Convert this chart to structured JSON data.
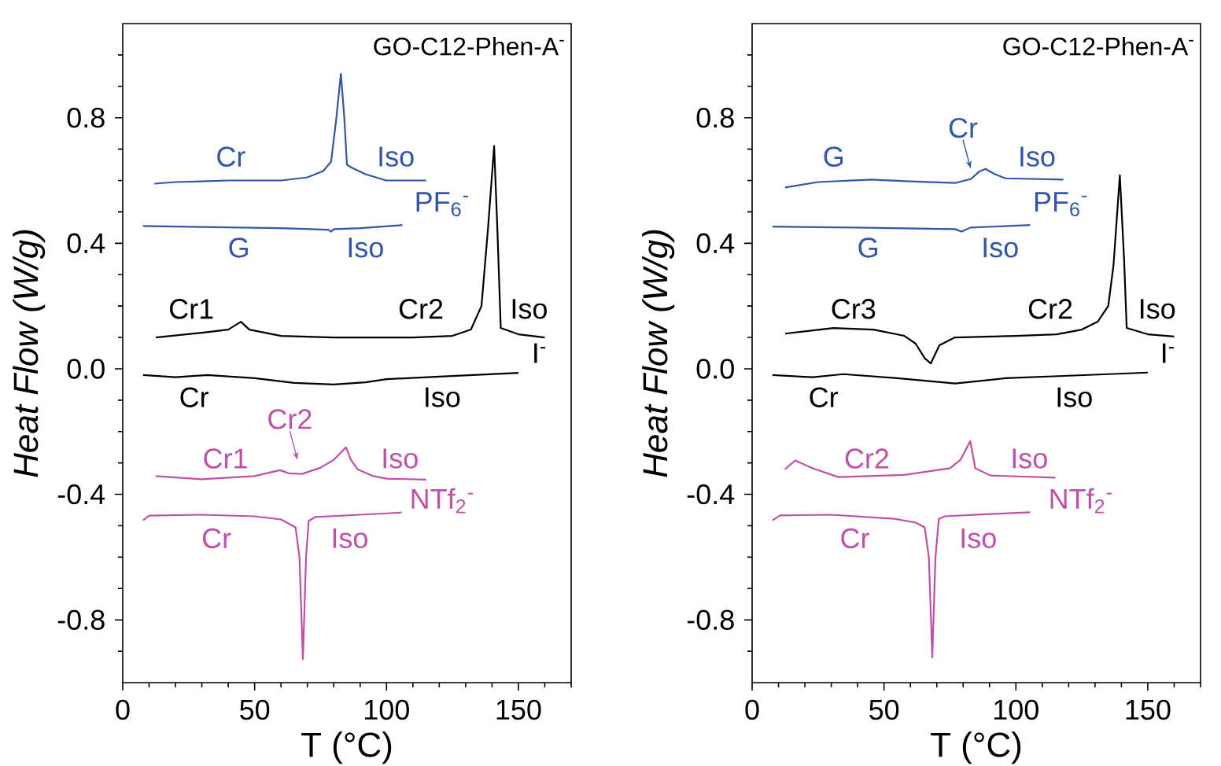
{
  "chart_data": [
    {
      "type": "line",
      "title": "GO-C12-Phen-A$^{-}$",
      "xlabel": "T (°C)",
      "ylabel": "Heat Flow (W/g)",
      "xlim": [
        0,
        170
      ],
      "ylim": [
        -1.0,
        1.1
      ],
      "xticks": [
        0,
        {
          "value": 10,
          "label": null
        },
        {
          "value": 20,
          "label": null
        },
        {
          "value": 30,
          "label": null
        },
        {
          "value": 40,
          "label": null
        },
        50,
        {
          "value": 60,
          "label": null
        },
        {
          "value": 70,
          "label": null
        },
        {
          "value": 80,
          "label": null
        },
        {
          "value": 90,
          "label": null
        },
        100,
        {
          "value": 110,
          "label": null
        },
        {
          "value": 120,
          "label": null
        },
        {
          "value": 130,
          "label": null
        },
        {
          "value": 140,
          "label": null
        },
        150,
        {
          "value": 160,
          "label": null
        },
        {
          "value": 170,
          "label": null
        }
      ],
      "yticks": [
        {
          "value": -0.9,
          "label": null
        },
        -0.8,
        {
          "value": -0.7,
          "label": null
        },
        {
          "value": -0.6,
          "label": null
        },
        {
          "value": -0.5,
          "label": null
        },
        -0.4,
        {
          "value": -0.3,
          "label": null
        },
        {
          "value": -0.2,
          "label": null
        },
        {
          "value": -0.1,
          "label": null
        },
        {
          "value": 0,
          "label": "0.0"
        },
        {
          "value": 0.1,
          "label": null
        },
        {
          "value": 0.2,
          "label": null
        },
        {
          "value": 0.3,
          "label": null
        },
        0.4,
        {
          "value": 0.5,
          "label": null
        },
        {
          "value": 0.6,
          "label": null
        },
        {
          "value": 0.7,
          "label": null
        },
        0.8,
        {
          "value": 0.9,
          "label": null
        },
        {
          "value": 1.0,
          "label": null
        }
      ],
      "series": [
        {
          "color": "#3355aa",
          "x": [
            12,
            20,
            40,
            60,
            70,
            76,
            79,
            81,
            82.7,
            84,
            85,
            87,
            92,
            100,
            115
          ],
          "values": [
            0.59,
            0.595,
            0.6,
            0.6,
            0.61,
            0.63,
            0.66,
            0.8,
            0.94,
            0.8,
            0.65,
            0.64,
            0.62,
            0.6,
            0.6
          ]
        },
        {
          "color": "#3355aa",
          "x": [
            7.7,
            30,
            60,
            78,
            79,
            80,
            90,
            106
          ],
          "values": [
            0.455,
            0.452,
            0.448,
            0.443,
            0.437,
            0.445,
            0.448,
            0.458
          ]
        },
        {
          "color": "#000000",
          "x": [
            12.5,
            30,
            40,
            44.8,
            48,
            60,
            80,
            110,
            125,
            132,
            136,
            138.5,
            140.8,
            142,
            143.3,
            150,
            160
          ],
          "values": [
            0.1,
            0.115,
            0.125,
            0.15,
            0.125,
            0.105,
            0.1,
            0.1,
            0.105,
            0.125,
            0.2,
            0.45,
            0.71,
            0.45,
            0.13,
            0.11,
            0.1
          ]
        },
        {
          "color": "#000000",
          "x": [
            7.7,
            20,
            32,
            50,
            65,
            80,
            92,
            100,
            120,
            150
          ],
          "values": [
            -0.02,
            -0.027,
            -0.02,
            -0.03,
            -0.045,
            -0.05,
            -0.043,
            -0.033,
            -0.025,
            -0.013
          ]
        },
        {
          "color": "#c050a8",
          "x": [
            12.5,
            30,
            50,
            56,
            59.6,
            63,
            68,
            75,
            80,
            84.6,
            86.5,
            89,
            95,
            100,
            115
          ],
          "values": [
            -0.342,
            -0.352,
            -0.342,
            -0.33,
            -0.323,
            -0.333,
            -0.335,
            -0.315,
            -0.29,
            -0.25,
            -0.29,
            -0.32,
            -0.342,
            -0.35,
            -0.353
          ]
        },
        {
          "color": "#c050a8",
          "x": [
            7.7,
            10,
            30,
            50,
            60,
            65.5,
            67,
            68.3,
            69.5,
            70.5,
            73,
            90,
            105.7
          ],
          "values": [
            -0.483,
            -0.468,
            -0.465,
            -0.47,
            -0.48,
            -0.505,
            -0.6,
            -0.925,
            -0.6,
            -0.485,
            -0.472,
            -0.465,
            -0.458
          ]
        }
      ],
      "annotations": [
        "Cr",
        "Iso",
        "PF$_{6}$$^{-}$",
        "G",
        "Iso",
        "Cr1",
        "Cr2",
        "Iso",
        "I$^{-}$",
        "Cr",
        "Iso",
        "Cr1",
        {
          "text": "Cr2",
          "x": 66.4,
          "y": -0.32
        },
        "Iso",
        "NTf$_{2}$$^{-}$",
        "Cr",
        "Iso"
      ]
    },
    {
      "type": "line",
      "title": "GO-C12-Phen-A$^{-}$",
      "xlabel": "T (°C)",
      "ylabel": "Heat Flow (W/g)",
      "xlim": [
        0,
        170
      ],
      "ylim": [
        -1.0,
        1.1
      ],
      "xticks": [
        0,
        {
          "value": 10,
          "label": null
        },
        {
          "value": 20,
          "label": null
        },
        {
          "value": 30,
          "label": null
        },
        {
          "value": 40,
          "label": null
        },
        50,
        {
          "value": 60,
          "label": null
        },
        {
          "value": 70,
          "label": null
        },
        {
          "value": 80,
          "label": null
        },
        {
          "value": 90,
          "label": null
        },
        100,
        {
          "value": 110,
          "label": null
        },
        {
          "value": 120,
          "label": null
        },
        {
          "value": 130,
          "label": null
        },
        {
          "value": 140,
          "label": null
        },
        150,
        {
          "value": 160,
          "label": null
        },
        {
          "value": 170,
          "label": null
        }
      ],
      "yticks": [
        {
          "value": -0.9,
          "label": null
        },
        -0.8,
        {
          "value": -0.7,
          "label": null
        },
        {
          "value": -0.6,
          "label": null
        },
        {
          "value": -0.5,
          "label": null
        },
        -0.4,
        {
          "value": -0.3,
          "label": null
        },
        {
          "value": -0.2,
          "label": null
        },
        {
          "value": -0.1,
          "label": null
        },
        {
          "value": 0,
          "label": "0.0"
        },
        {
          "value": 0.1,
          "label": null
        },
        {
          "value": 0.2,
          "label": null
        },
        {
          "value": 0.3,
          "label": null
        },
        0.4,
        {
          "value": 0.5,
          "label": null
        },
        {
          "value": 0.6,
          "label": null
        },
        {
          "value": 0.7,
          "label": null
        },
        0.8,
        {
          "value": 0.9,
          "label": null
        },
        {
          "value": 1.0,
          "label": null
        }
      ],
      "series": [
        {
          "color": "#3355aa",
          "x": [
            12.5,
            25,
            45,
            60,
            77,
            83,
            86,
            88.5,
            92,
            96,
            118
          ],
          "values": [
            0.578,
            0.595,
            0.603,
            0.597,
            0.592,
            0.605,
            0.628,
            0.637,
            0.62,
            0.607,
            0.603
          ]
        },
        {
          "color": "#3355aa",
          "x": [
            7.7,
            40,
            77,
            79.4,
            82.7,
            105.4
          ],
          "values": [
            0.453,
            0.45,
            0.445,
            0.437,
            0.45,
            0.458
          ]
        },
        {
          "color": "#000000",
          "x": [
            12.5,
            30.8,
            46,
            57.7,
            62,
            65.4,
            67.7,
            71,
            76.9,
            100,
            115.4,
            125,
            131,
            135,
            137,
            139.4,
            141,
            142,
            150,
            160
          ],
          "values": [
            0.112,
            0.13,
            0.125,
            0.105,
            0.08,
            0.034,
            0.017,
            0.075,
            0.1,
            0.105,
            0.11,
            0.125,
            0.15,
            0.2,
            0.33,
            0.617,
            0.35,
            0.13,
            0.11,
            0.103
          ]
        },
        {
          "color": "#000000",
          "x": [
            7.7,
            23,
            34.6,
            55,
            77,
            96,
            120,
            150
          ],
          "values": [
            -0.02,
            -0.027,
            -0.017,
            -0.03,
            -0.047,
            -0.03,
            -0.022,
            -0.012
          ]
        },
        {
          "color": "#c050a8",
          "x": [
            12.5,
            16.3,
            23,
            32.7,
            57.7,
            75,
            79,
            82.7,
            84.6,
            90.4,
            115
          ],
          "values": [
            -0.32,
            -0.292,
            -0.317,
            -0.345,
            -0.338,
            -0.317,
            -0.29,
            -0.23,
            -0.317,
            -0.34,
            -0.347
          ]
        },
        {
          "color": "#c050a8",
          "x": [
            7.7,
            10.6,
            30,
            53.8,
            62,
            65.4,
            67,
            68.3,
            69.5,
            70.8,
            73,
            90,
            105.4
          ],
          "values": [
            -0.483,
            -0.467,
            -0.465,
            -0.478,
            -0.49,
            -0.505,
            -0.6,
            -0.92,
            -0.6,
            -0.478,
            -0.47,
            -0.463,
            -0.457
          ]
        }
      ],
      "annotations": [
        "G",
        {
          "text": "Cr",
          "x": 83,
          "y": 0.608
        },
        "Iso",
        "PF$_{6}$$^{-}$",
        "G",
        "Iso",
        "Cr3",
        "Cr2",
        "Iso",
        "I$^{-}$",
        "Cr",
        "Iso",
        "Cr2",
        "Iso",
        "NTf$_{2}$$^{-}$",
        "Cr",
        "Iso"
      ]
    }
  ]
}
